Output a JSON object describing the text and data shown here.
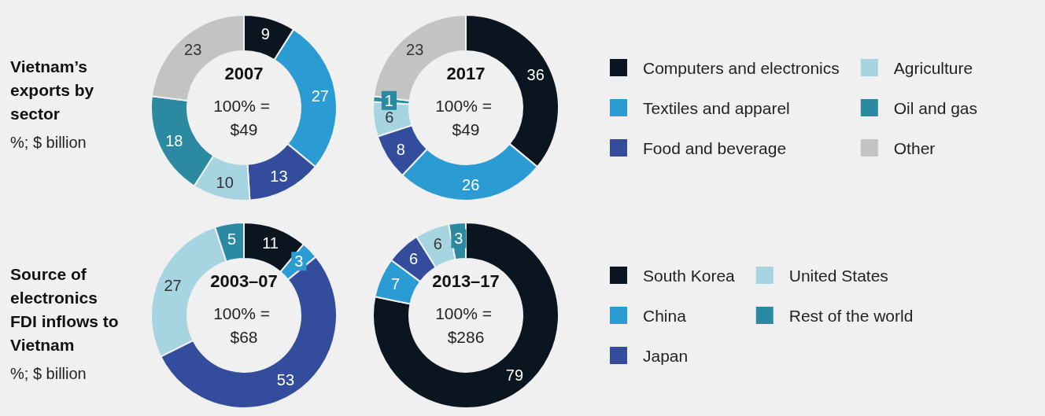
{
  "chart_data": [
    {
      "type": "donut",
      "title": "Vietnam’s exports by sector",
      "subtitle": "%; $ billion",
      "annotations": [
        "100% = $49",
        "100% = $49"
      ],
      "categories": [
        "Computers and electronics",
        "Textiles and apparel",
        "Food and beverage",
        "Agriculture",
        "Oil and gas",
        "Other"
      ],
      "colors": [
        "#0b1520",
        "#2a9bd3",
        "#334d9c",
        "#a6d4e0",
        "#2b8aa2",
        "#c3c3c3"
      ],
      "series": [
        {
          "name": "2007",
          "values": [
            9,
            27,
            13,
            10,
            18,
            23
          ]
        },
        {
          "name": "2017",
          "values": [
            36,
            26,
            8,
            6,
            1,
            23
          ]
        }
      ],
      "data_labels": true,
      "legend": "right"
    },
    {
      "type": "donut",
      "title": "Source of electronics FDI inflows to Vietnam",
      "subtitle": "%; $ billion",
      "annotations": [
        "100% = $68",
        "100% = $286"
      ],
      "categories": [
        "South Korea",
        "China",
        "Japan",
        "United States",
        "Rest of the world"
      ],
      "colors": [
        "#0b1520",
        "#2a9bd3",
        "#334d9c",
        "#a6d4e0",
        "#2b8aa2"
      ],
      "series": [
        {
          "name": "2003–07",
          "values": [
            11,
            3,
            53,
            27,
            5
          ]
        },
        {
          "name": "2013–17",
          "values": [
            79,
            7,
            6,
            6,
            3
          ]
        }
      ],
      "data_labels": true,
      "legend": "right"
    }
  ]
}
